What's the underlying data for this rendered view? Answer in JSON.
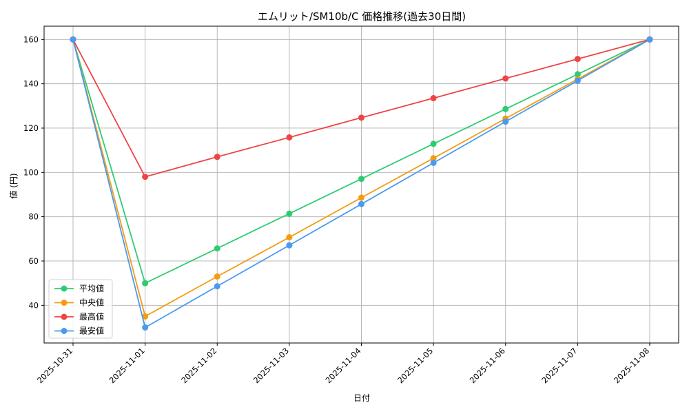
{
  "chart_data": {
    "type": "line",
    "title": "エムリット/SM10b/C 価格推移(過去30日間)",
    "xlabel": "日付",
    "ylabel": "値 (円)",
    "categories": [
      "2025-10-31",
      "2025-11-01",
      "2025-11-02",
      "2025-11-03",
      "2025-11-04",
      "2025-11-05",
      "2025-11-06",
      "2025-11-07",
      "2025-11-08"
    ],
    "ylim": [
      23,
      166
    ],
    "yticks": [
      40,
      60,
      80,
      100,
      120,
      140,
      160
    ],
    "grid": true,
    "legend_position": "lower-left",
    "series": [
      {
        "name": "平均値",
        "color": "#2ecc71",
        "values": [
          160,
          50,
          65.7,
          81.4,
          97.1,
          112.9,
          128.6,
          144.3,
          160
        ]
      },
      {
        "name": "中央値",
        "color": "#f39c12",
        "values": [
          160,
          35,
          53,
          70.7,
          88.6,
          106.4,
          124.3,
          142.1,
          160
        ]
      },
      {
        "name": "最高値",
        "color": "#ef4444",
        "values": [
          160,
          98,
          107,
          115.8,
          124.7,
          133.5,
          142.4,
          151.2,
          160
        ]
      },
      {
        "name": "最安値",
        "color": "#4a9af0",
        "values": [
          160,
          30,
          48.6,
          67.1,
          85.7,
          104.3,
          122.9,
          141.4,
          160
        ]
      }
    ]
  }
}
